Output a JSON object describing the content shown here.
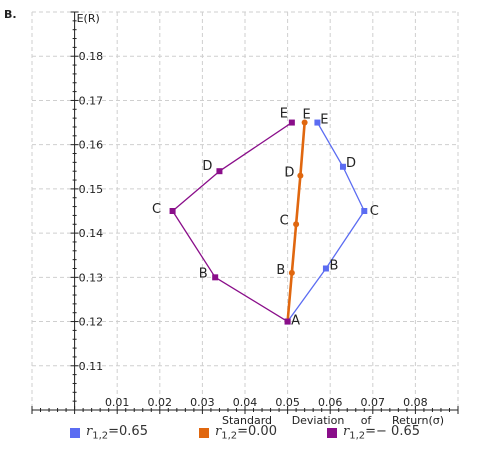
{
  "panel_label": "B.",
  "chart_data": {
    "type": "line",
    "title": "",
    "xlabel_parts": [
      "Standard",
      "Deviation",
      "of",
      "Return(σ)"
    ],
    "ylabel": "E(R)",
    "xlim": [
      -0.01,
      0.09
    ],
    "ylim": [
      0.1,
      0.19
    ],
    "x_ticks": [
      0.01,
      0.02,
      0.03,
      0.04,
      0.05,
      0.06,
      0.07,
      0.08
    ],
    "x_tick_labels": [
      "0.01",
      "0.02",
      "0.03",
      "0.04",
      "0.05",
      "0.06",
      "0.07",
      "0.08"
    ],
    "y_ticks": [
      0.11,
      0.12,
      0.13,
      0.14,
      0.15,
      0.16,
      0.17,
      0.18
    ],
    "y_tick_labels": [
      "0.11",
      "0.12",
      "0.13",
      "0.14",
      "0.15",
      "0.16",
      "0.17",
      "0.18"
    ],
    "grid": true,
    "legend_position": "bottom",
    "series": [
      {
        "legend_r": "r",
        "legend_sub": "1,2",
        "legend_value": "=0.65",
        "color": "#5b6cf2",
        "line_width": 1.3,
        "points": [
          {
            "label": "A",
            "x": 0.05,
            "y": 0.12
          },
          {
            "label": "B",
            "x": 0.059,
            "y": 0.132
          },
          {
            "label": "C",
            "x": 0.068,
            "y": 0.145
          },
          {
            "label": "D",
            "x": 0.063,
            "y": 0.155
          },
          {
            "label": "E",
            "x": 0.057,
            "y": 0.165
          }
        ]
      },
      {
        "legend_r": "r",
        "legend_sub": "1,2",
        "legend_value": "=0.00",
        "color": "#e0670f",
        "line_width": 2.6,
        "points": [
          {
            "label": "A",
            "x": 0.05,
            "y": 0.12
          },
          {
            "label": "B",
            "x": 0.051,
            "y": 0.131
          },
          {
            "label": "C",
            "x": 0.052,
            "y": 0.142
          },
          {
            "label": "D",
            "x": 0.053,
            "y": 0.153
          },
          {
            "label": "E",
            "x": 0.054,
            "y": 0.165
          }
        ]
      },
      {
        "legend_r": "r",
        "legend_sub": "1,2",
        "legend_value": "=− 0.65",
        "color": "#8a0e8a",
        "line_width": 1.3,
        "points": [
          {
            "label": "A",
            "x": 0.05,
            "y": 0.12
          },
          {
            "label": "B",
            "x": 0.033,
            "y": 0.13
          },
          {
            "label": "C",
            "x": 0.023,
            "y": 0.145
          },
          {
            "label": "D",
            "x": 0.034,
            "y": 0.154
          },
          {
            "label": "E",
            "x": 0.051,
            "y": 0.165
          }
        ]
      }
    ]
  }
}
